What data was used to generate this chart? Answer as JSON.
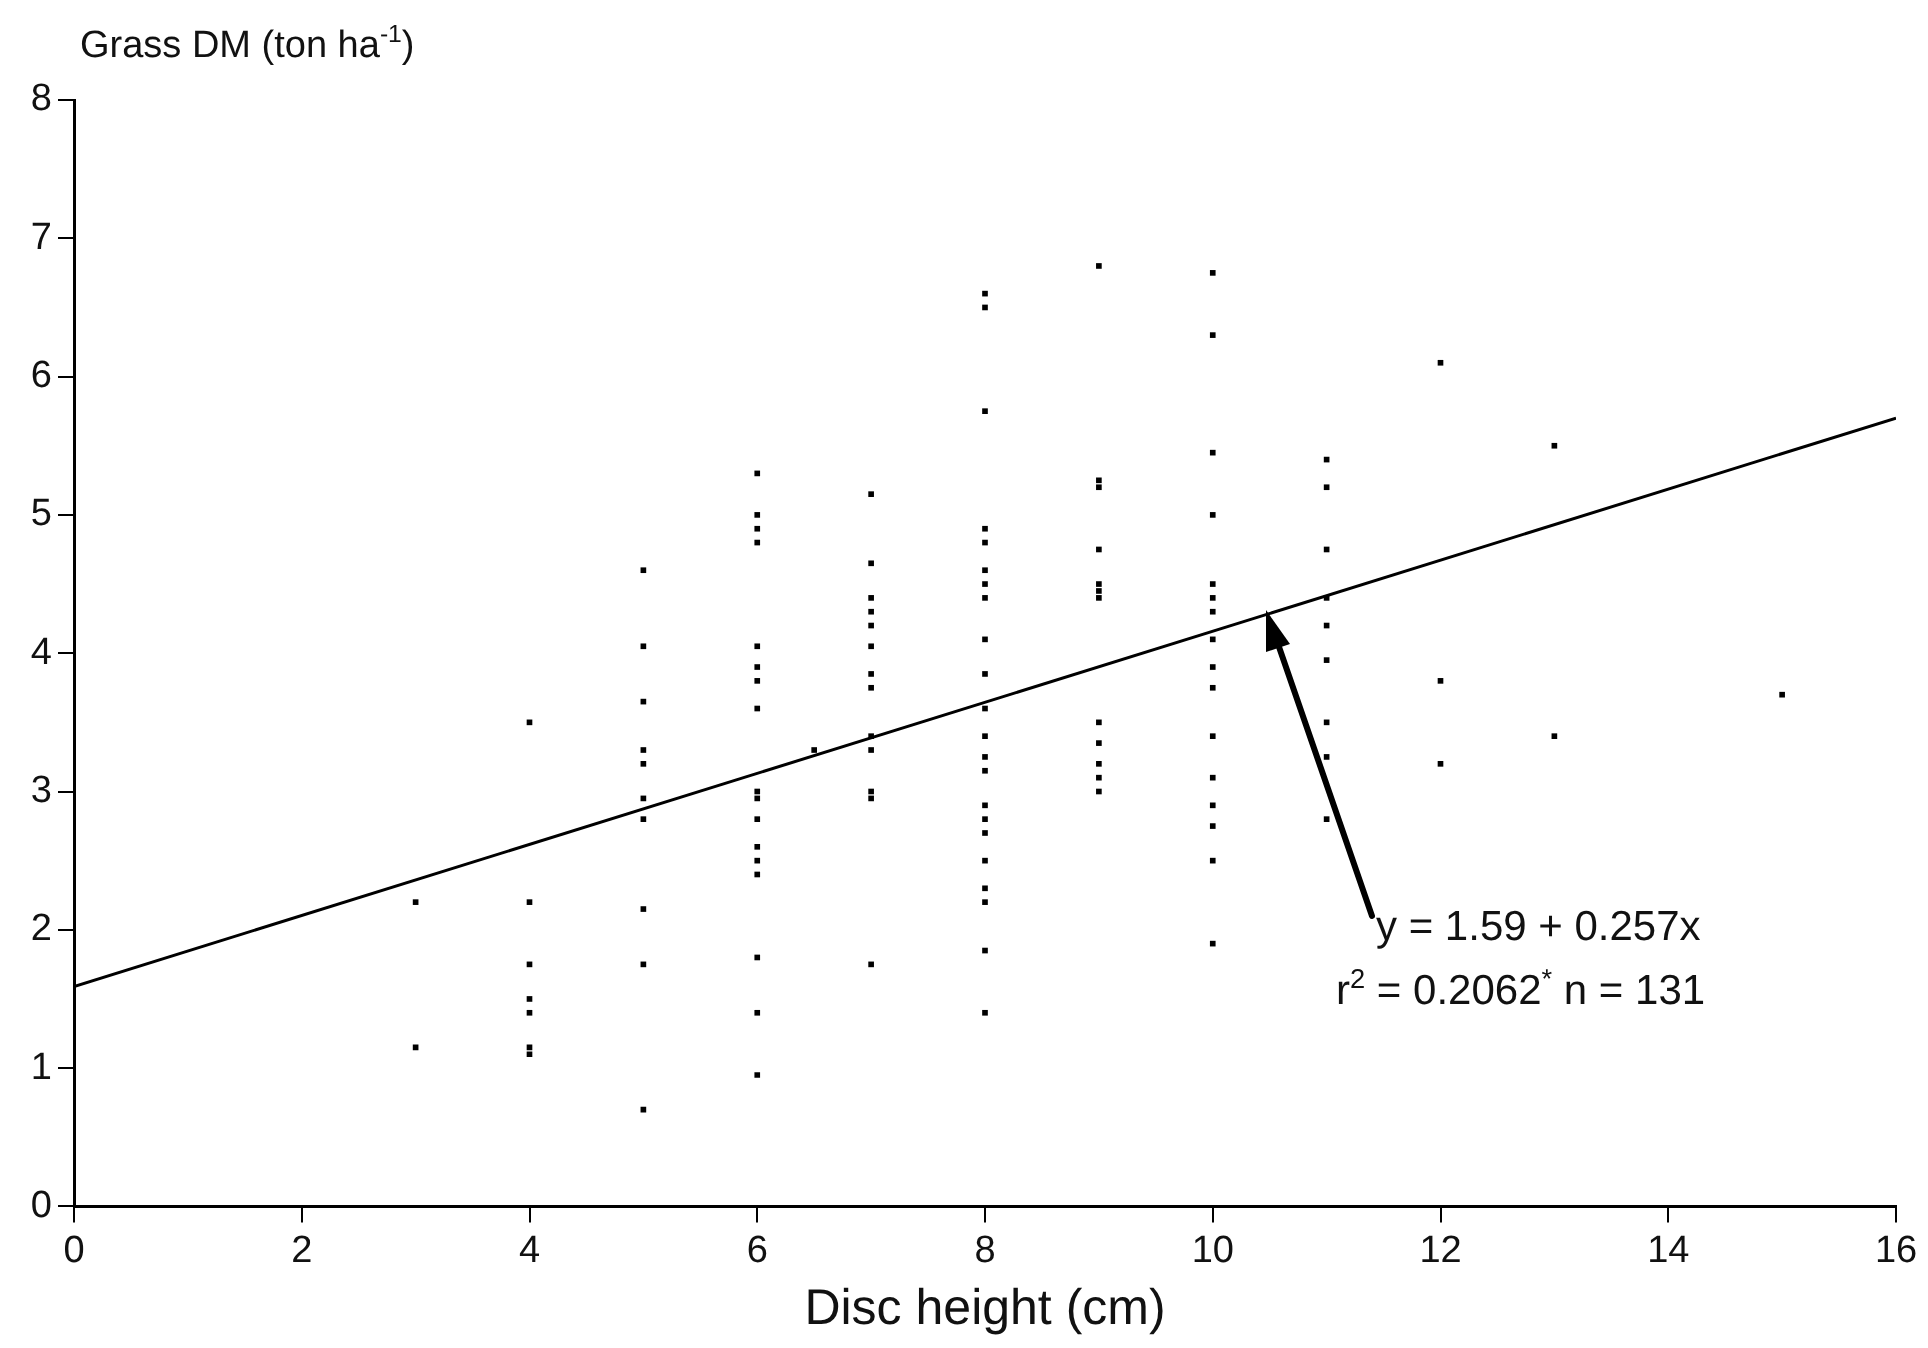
{
  "chart_data": {
    "type": "scatter",
    "xlabel": "Disc height (cm)",
    "ylabel": "Grass DM (ton ha$^{-1}$)",
    "xlim": [
      0,
      16
    ],
    "xticks": [
      0,
      2,
      4,
      6,
      8,
      10,
      12,
      14,
      16
    ],
    "ylim": [
      0,
      8
    ],
    "yticks": [
      0,
      1,
      2,
      3,
      4,
      5,
      6,
      7,
      8
    ],
    "grid": false,
    "legend": false,
    "series": [
      {
        "color": "#000000",
        "marker": "square",
        "x": [
          3,
          3,
          4,
          4,
          4,
          4,
          4,
          4,
          4,
          5,
          5,
          5,
          5,
          5,
          5,
          5,
          5,
          5,
          5,
          6,
          6,
          6,
          6,
          6,
          6,
          6,
          6,
          6,
          6,
          6,
          6,
          6,
          6,
          6,
          6,
          6,
          6.5,
          7,
          7,
          7,
          7,
          7,
          7,
          7,
          7,
          7,
          7,
          7,
          7,
          7,
          8,
          8,
          8,
          8,
          8,
          8,
          8,
          8,
          8,
          8,
          8,
          8,
          8,
          8,
          8,
          8,
          8,
          8,
          8,
          8,
          8,
          8,
          9,
          9,
          9,
          9,
          9,
          9,
          9,
          9,
          9,
          9,
          9,
          9,
          10,
          10,
          10,
          10,
          10,
          10,
          10,
          10,
          10,
          10,
          10,
          10,
          10,
          10,
          10,
          10,
          11,
          11,
          11,
          11,
          11,
          11,
          11,
          11,
          11,
          12,
          12,
          12,
          13,
          13,
          15
        ],
        "values": [
          2.2,
          1.15,
          3.5,
          2.2,
          1.75,
          1.5,
          1.4,
          1.15,
          1.1,
          4.6,
          4.05,
          3.65,
          3.3,
          3.2,
          2.95,
          2.8,
          2.15,
          1.75,
          0.7,
          5.3,
          5.0,
          4.9,
          4.8,
          4.05,
          3.9,
          3.8,
          3.6,
          3.0,
          2.95,
          2.8,
          2.6,
          2.5,
          2.4,
          1.8,
          1.4,
          0.95,
          3.3,
          5.15,
          4.65,
          4.4,
          4.3,
          4.2,
          4.05,
          3.85,
          3.75,
          3.4,
          3.3,
          3.0,
          2.95,
          1.75,
          6.6,
          6.5,
          5.75,
          4.9,
          4.8,
          4.6,
          4.5,
          4.4,
          4.1,
          3.85,
          3.6,
          3.4,
          3.25,
          3.15,
          2.9,
          2.8,
          2.7,
          2.5,
          2.3,
          2.2,
          1.85,
          1.4,
          6.8,
          5.25,
          5.2,
          4.75,
          4.5,
          4.45,
          4.4,
          3.5,
          3.35,
          3.2,
          3.1,
          3.0,
          6.75,
          6.3,
          5.45,
          5.0,
          4.5,
          4.4,
          4.3,
          4.1,
          3.9,
          3.75,
          3.4,
          3.1,
          2.9,
          2.75,
          2.5,
          1.9,
          5.4,
          5.2,
          4.75,
          4.4,
          4.2,
          3.95,
          3.5,
          3.25,
          2.8,
          6.1,
          3.8,
          3.2,
          5.5,
          3.4,
          3.7
        ]
      },
      {
        "type": "line",
        "color": "#000000",
        "x": [
          0,
          16
        ],
        "values": [
          1.59,
          5.7
        ]
      }
    ],
    "annotations": [
      "y = 1.59 + 0.257x",
      "r$^{2}$ = 0.2062$^{*}$ n = 131"
    ]
  }
}
